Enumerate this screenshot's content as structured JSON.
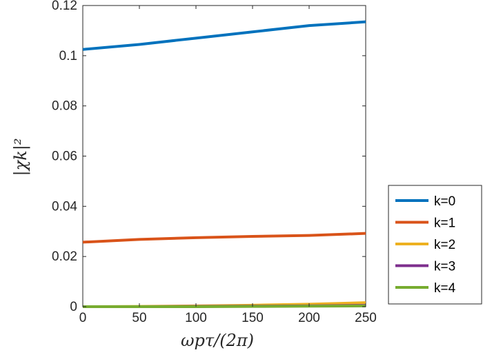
{
  "chart_data": {
    "type": "line",
    "title": "",
    "xlabel": "ωpτ/(2π)",
    "ylabel": "|χk|²",
    "xlim": [
      0,
      250
    ],
    "ylim": [
      0,
      0.12
    ],
    "xticks": [
      0,
      50,
      100,
      150,
      200,
      250
    ],
    "xtick_labels": [
      "0",
      "50",
      "100",
      "150",
      "200",
      "250"
    ],
    "yticks": [
      0,
      0.02,
      0.04,
      0.06,
      0.08,
      0.1,
      0.12
    ],
    "ytick_labels": [
      "0",
      "0.02",
      "0.04",
      "0.06",
      "0.08",
      "0.1",
      "0.12"
    ],
    "grid": false,
    "legend_position": "outside-right",
    "x": [
      0,
      50,
      100,
      150,
      200,
      250
    ],
    "series": [
      {
        "name": "k=0",
        "color": "#0072BD",
        "values": [
          0.1025,
          0.1045,
          0.107,
          0.1095,
          0.112,
          0.1135
        ]
      },
      {
        "name": "k=1",
        "color": "#D95319",
        "values": [
          0.0257,
          0.0268,
          0.0275,
          0.028,
          0.0284,
          0.0292
        ]
      },
      {
        "name": "k=2",
        "color": "#EDB120",
        "values": [
          0.0,
          0.0001,
          0.0003,
          0.0006,
          0.001,
          0.0016
        ]
      },
      {
        "name": "k=3",
        "color": "#7E2F8E",
        "values": [
          0.0,
          0.0,
          0.0001,
          0.0002,
          0.0003,
          0.0005
        ]
      },
      {
        "name": "k=4",
        "color": "#77AC30",
        "values": [
          0.0,
          0.0,
          0.0,
          0.0001,
          0.0002,
          0.0003
        ]
      }
    ]
  }
}
